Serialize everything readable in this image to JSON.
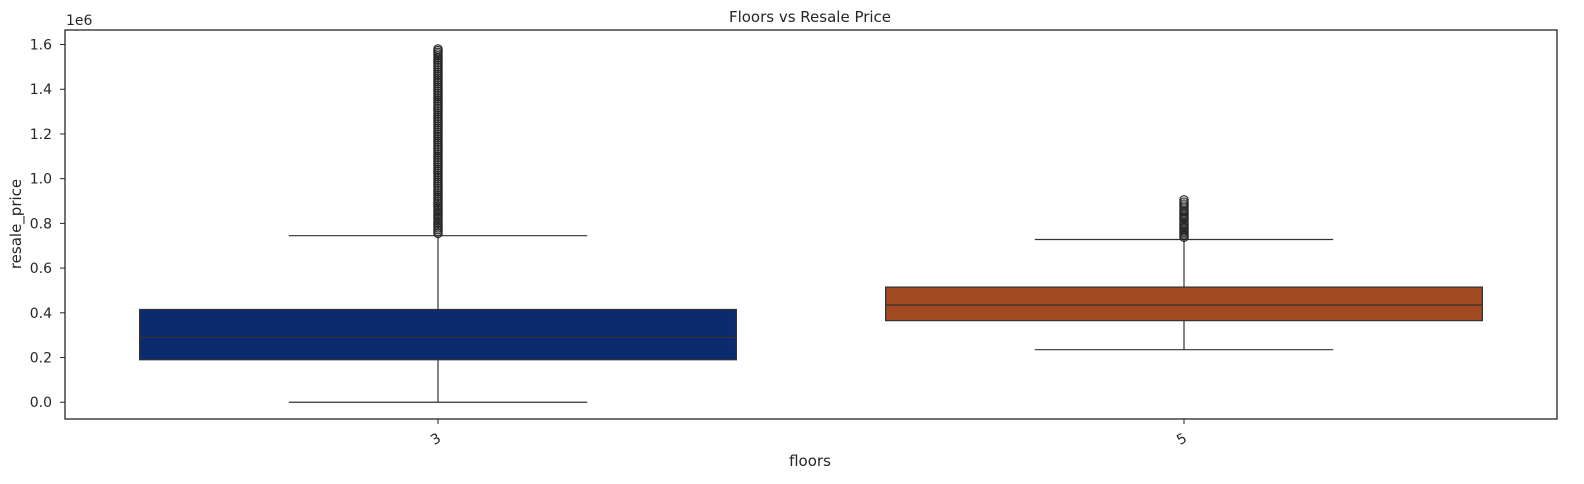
{
  "chart_data": {
    "type": "box",
    "title": "Floors vs Resale Price",
    "xlabel": "floors",
    "ylabel": "resale_price",
    "y_offset_label": "1e6",
    "categories": [
      "3",
      "5"
    ],
    "ylim": [
      -0.075,
      1.665
    ],
    "yticks": [
      0.0,
      0.2,
      0.4,
      0.6,
      0.8,
      1.0,
      1.2,
      1.4,
      1.6
    ],
    "ytick_labels": [
      "0.0",
      "0.2",
      "0.4",
      "0.6",
      "0.8",
      "1.0",
      "1.2",
      "1.4",
      "1.6"
    ],
    "grid": false,
    "boxes": [
      {
        "category": "3",
        "color": "#0c2a6e",
        "whisker_low": 0.0,
        "q1": 0.19,
        "median": 0.29,
        "q3": 0.415,
        "whisker_high": 0.745,
        "outliers": [
          0.755,
          0.78,
          0.82,
          0.86,
          0.9,
          0.95,
          1.0,
          1.05,
          1.1,
          1.15,
          1.2,
          1.25,
          1.3,
          1.35,
          1.4,
          1.45,
          1.5,
          1.55,
          1.58
        ]
      },
      {
        "category": "5",
        "color": "#a14a22",
        "whisker_low": 0.235,
        "q1": 0.365,
        "median": 0.435,
        "q3": 0.515,
        "whisker_high": 0.728,
        "outliers": [
          0.738,
          0.76,
          0.78,
          0.8,
          0.82,
          0.84,
          0.86,
          0.895,
          0.905
        ]
      }
    ]
  }
}
